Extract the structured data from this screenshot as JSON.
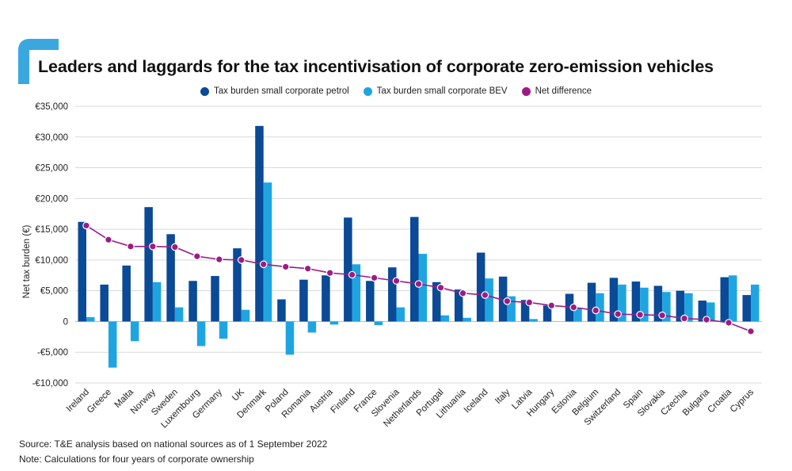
{
  "title": "Leaders and laggards for the tax incentivisation of corporate zero-emission vehicles",
  "source": "Source: T&E analysis based on national sources as of 1 September 2022",
  "note": "Note: Calculations for four years of corporate ownership",
  "colors": {
    "petrol": "#0a4a96",
    "bev": "#1ea5e1",
    "net": "#9c1b86",
    "brand": "#3aa8df",
    "grid": "#d9d9d9"
  },
  "chart_data": {
    "type": "bar",
    "ylabel": "Net tax burden (€)",
    "ylim": [
      -10000,
      35000
    ],
    "yticks": [
      {
        "value": 35000,
        "label": "€35,000"
      },
      {
        "value": 30000,
        "label": "€30,000"
      },
      {
        "value": 25000,
        "label": "€25,000"
      },
      {
        "value": 20000,
        "label": "€20,000"
      },
      {
        "value": 15000,
        "label": "€15,000"
      },
      {
        "value": 10000,
        "label": "€10,000"
      },
      {
        "value": 5000,
        "label": "€5,000"
      },
      {
        "value": 0,
        "label": "0"
      },
      {
        "value": -5000,
        "label": "-€5,000"
      },
      {
        "value": -10000,
        "label": "-€10,000"
      }
    ],
    "grid": true,
    "legend_position": "top-center",
    "categories": [
      "Ireland",
      "Greece",
      "Malta",
      "Norway",
      "Sweden",
      "Luxembourg",
      "Germany",
      "UK",
      "Denmark",
      "Poland",
      "Romania",
      "Austria",
      "Finland",
      "France",
      "Slovenia",
      "Netherlands",
      "Portugal",
      "Lithuania",
      "Iceland",
      "Italy",
      "Latvia",
      "Hungary",
      "Estonia",
      "Belgium",
      "Switzerland",
      "Spain",
      "Slovakia",
      "Czechia",
      "Bulgaria",
      "Croatia",
      "Cyprus"
    ],
    "series": [
      {
        "name": "Tax burden small corporate petrol",
        "kind": "bar",
        "color": "#0a4a96",
        "values": [
          16200,
          6000,
          9100,
          18600,
          14200,
          6600,
          7400,
          11900,
          31800,
          3600,
          6800,
          7500,
          16900,
          6600,
          8800,
          17000,
          6400,
          5200,
          11200,
          7300,
          3500,
          2600,
          4500,
          6300,
          7100,
          6500,
          5800,
          5000,
          3400,
          7200,
          4300
        ]
      },
      {
        "name": "Tax burden small corporate BEV",
        "kind": "bar",
        "color": "#1ea5e1",
        "values": [
          700,
          -7500,
          -3200,
          6400,
          2300,
          -4000,
          -2800,
          1900,
          22600,
          -5400,
          -1800,
          -500,
          9300,
          -600,
          2300,
          11000,
          1000,
          600,
          7000,
          4100,
          400,
          0,
          2200,
          4600,
          6000,
          5500,
          4800,
          4600,
          3100,
          7500,
          6000
        ]
      },
      {
        "name": "Net difference",
        "kind": "line",
        "color": "#9c1b86",
        "values": [
          15600,
          13300,
          12200,
          12200,
          12100,
          10600,
          10100,
          10000,
          9300,
          8900,
          8600,
          7900,
          7600,
          7100,
          6600,
          6100,
          5500,
          4600,
          4300,
          3300,
          3100,
          2600,
          2300,
          1800,
          1200,
          1100,
          1000,
          500,
          300,
          -200,
          -1600
        ]
      }
    ]
  }
}
